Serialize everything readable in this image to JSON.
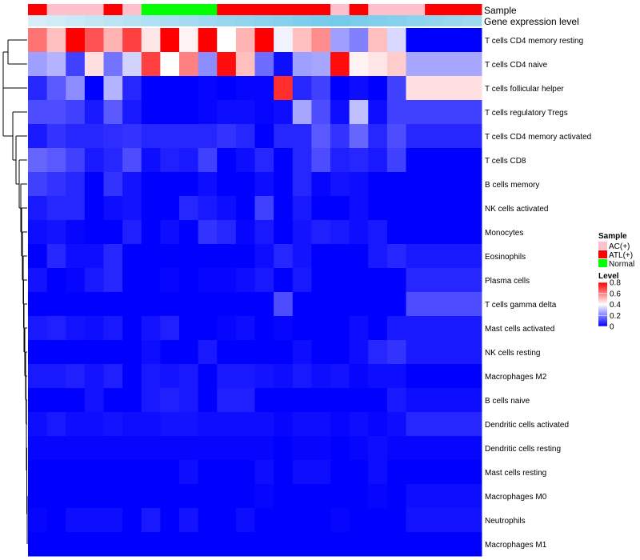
{
  "chart_data": {
    "type": "heatmap",
    "title": "",
    "annotation_tracks": [
      {
        "name": "Sample",
        "label": "Sample"
      },
      {
        "name": "Gene expression level",
        "label": "Gene expression level"
      }
    ],
    "sample_groups": [
      "ATL(+)",
      "AC(+)",
      "AC(+)",
      "AC(+)",
      "ATL(+)",
      "AC(+)",
      "Normal",
      "Normal",
      "Normal",
      "Normal",
      "ATL(+)",
      "ATL(+)",
      "ATL(+)",
      "ATL(+)",
      "ATL(+)",
      "ATL(+)",
      "AC(+)",
      "ATL(+)",
      "AC(+)",
      "AC(+)",
      "AC(+)",
      "ATL(+)",
      "ATL(+)",
      "ATL(+)"
    ],
    "expression_level": [
      0.02,
      0.08,
      0.14,
      0.2,
      0.26,
      0.32,
      0.38,
      0.44,
      0.5,
      0.56,
      0.62,
      0.68,
      0.74,
      0.8,
      0.86,
      0.92,
      0.96,
      0.9,
      0.84,
      0.78,
      0.72,
      0.66,
      0.6,
      0.54
    ],
    "rows": [
      "T cells CD4 memory resting",
      "T cells CD4 naive",
      "T cells follicular helper",
      "T cells regulatory  Tregs",
      "T cells CD4 memory activated",
      "T cells CD8",
      "B cells memory",
      "NK cells activated",
      "Monocytes",
      "Eosinophils",
      "Plasma cells",
      "T cells gamma delta",
      "Mast cells activated",
      "NK cells resting",
      "Macrophages M2",
      "B cells naive",
      "Dendritic cells activated",
      "Dendritic cells resting",
      "Mast cells resting",
      "Macrophages M0",
      "Neutrophils",
      "Macrophages M1"
    ],
    "values": [
      [
        0.62,
        0.5,
        0.8,
        0.67,
        0.52,
        0.7,
        0.44,
        0.8,
        0.42,
        0.8,
        0.4,
        0.52,
        0.8,
        0.38,
        0.5,
        0.58,
        0.25,
        0.2,
        0.5,
        0.34,
        0.0,
        0.0,
        0.0,
        0.0
      ],
      [
        0.25,
        0.28,
        0.1,
        0.45,
        0.18,
        0.33,
        0.7,
        0.4,
        0.6,
        0.22,
        0.78,
        0.5,
        0.17,
        0.02,
        0.25,
        0.26,
        0.78,
        0.42,
        0.44,
        0.48,
        0.26,
        0.26,
        0.26,
        0.26
      ],
      [
        0.06,
        0.14,
        0.22,
        0.0,
        0.28,
        0.06,
        0.0,
        0.0,
        0.0,
        0.01,
        0.0,
        0.01,
        0.01,
        0.73,
        0.06,
        0.1,
        0.0,
        0.02,
        0.0,
        0.1,
        0.45,
        0.45,
        0.45,
        0.45
      ],
      [
        0.12,
        0.12,
        0.1,
        0.04,
        0.14,
        0.04,
        0.0,
        0.0,
        0.0,
        0.01,
        0.02,
        0.02,
        0.01,
        0.02,
        0.26,
        0.12,
        0.02,
        0.3,
        0.02,
        0.1,
        0.1,
        0.1,
        0.1,
        0.1
      ],
      [
        0.04,
        0.08,
        0.06,
        0.06,
        0.07,
        0.08,
        0.06,
        0.06,
        0.06,
        0.06,
        0.08,
        0.06,
        0.0,
        0.06,
        0.06,
        0.14,
        0.08,
        0.16,
        0.06,
        0.12,
        0.06,
        0.06,
        0.06,
        0.06
      ],
      [
        0.16,
        0.14,
        0.1,
        0.04,
        0.06,
        0.12,
        0.02,
        0.05,
        0.04,
        0.1,
        0.0,
        0.02,
        0.06,
        0.0,
        0.06,
        0.12,
        0.05,
        0.06,
        0.04,
        0.1,
        0.0,
        0.0,
        0.0,
        0.0
      ],
      [
        0.1,
        0.08,
        0.06,
        0.0,
        0.08,
        0.03,
        0.0,
        0.0,
        0.0,
        0.02,
        0.0,
        0.0,
        0.02,
        0.0,
        0.06,
        0.01,
        0.03,
        0.02,
        0.0,
        0.0,
        0.0,
        0.0,
        0.0,
        0.0
      ],
      [
        0.04,
        0.06,
        0.06,
        0.0,
        0.02,
        0.03,
        0.0,
        0.0,
        0.06,
        0.04,
        0.02,
        0.0,
        0.1,
        0.0,
        0.04,
        0.0,
        0.0,
        0.02,
        0.0,
        0.0,
        0.0,
        0.0,
        0.0,
        0.0
      ],
      [
        0.02,
        0.03,
        0.01,
        0.0,
        0.0,
        0.05,
        0.0,
        0.02,
        0.0,
        0.08,
        0.06,
        0.01,
        0.04,
        0.0,
        0.03,
        0.05,
        0.04,
        0.02,
        0.04,
        0.0,
        0.0,
        0.0,
        0.0,
        0.0
      ],
      [
        0.0,
        0.06,
        0.02,
        0.02,
        0.06,
        0.0,
        0.0,
        0.0,
        0.0,
        0.0,
        0.0,
        0.0,
        0.02,
        0.06,
        0.03,
        0.0,
        0.0,
        0.0,
        0.04,
        0.06,
        0.04,
        0.04,
        0.04,
        0.04
      ],
      [
        0.03,
        0.0,
        0.01,
        0.04,
        0.06,
        0.0,
        0.0,
        0.01,
        0.0,
        0.01,
        0.01,
        0.02,
        0.04,
        0.0,
        0.04,
        0.0,
        0.0,
        0.0,
        0.0,
        0.0,
        0.06,
        0.06,
        0.06,
        0.06
      ],
      [
        0.0,
        0.0,
        0.0,
        0.0,
        0.0,
        0.0,
        0.0,
        0.0,
        0.0,
        0.0,
        0.0,
        0.0,
        0.0,
        0.12,
        0.0,
        0.0,
        0.0,
        0.0,
        0.0,
        0.0,
        0.12,
        0.12,
        0.12,
        0.12
      ],
      [
        0.04,
        0.05,
        0.03,
        0.02,
        0.04,
        0.0,
        0.03,
        0.05,
        0.0,
        0.0,
        0.01,
        0.02,
        0.0,
        0.01,
        0.0,
        0.0,
        0.0,
        0.02,
        0.0,
        0.04,
        0.04,
        0.04,
        0.04,
        0.04
      ],
      [
        0.0,
        0.0,
        0.0,
        0.0,
        0.0,
        0.0,
        0.02,
        0.0,
        0.0,
        0.04,
        0.0,
        0.0,
        0.0,
        0.0,
        0.02,
        0.0,
        0.0,
        0.02,
        0.06,
        0.08,
        0.04,
        0.04,
        0.04,
        0.04
      ],
      [
        0.04,
        0.04,
        0.05,
        0.03,
        0.05,
        0.0,
        0.04,
        0.03,
        0.04,
        0.0,
        0.04,
        0.04,
        0.03,
        0.02,
        0.04,
        0.02,
        0.03,
        0.01,
        0.02,
        0.02,
        0.0,
        0.0,
        0.0,
        0.0
      ],
      [
        0.0,
        0.0,
        0.0,
        0.03,
        0.0,
        0.0,
        0.04,
        0.05,
        0.04,
        0.0,
        0.05,
        0.05,
        0.0,
        0.0,
        0.0,
        0.0,
        0.0,
        0.0,
        0.0,
        0.04,
        0.02,
        0.02,
        0.02,
        0.02
      ],
      [
        0.02,
        0.04,
        0.02,
        0.02,
        0.03,
        0.02,
        0.02,
        0.03,
        0.03,
        0.02,
        0.02,
        0.02,
        0.02,
        0.01,
        0.02,
        0.02,
        0.01,
        0.02,
        0.01,
        0.02,
        0.06,
        0.06,
        0.06,
        0.06
      ],
      [
        0.01,
        0.01,
        0.01,
        0.01,
        0.01,
        0.01,
        0.01,
        0.01,
        0.01,
        0.01,
        0.01,
        0.01,
        0.01,
        0.0,
        0.01,
        0.01,
        0.0,
        0.01,
        0.02,
        0.01,
        0.01,
        0.01,
        0.01,
        0.01
      ],
      [
        0.0,
        0.0,
        0.0,
        0.0,
        0.0,
        0.0,
        0.0,
        0.0,
        0.02,
        0.0,
        0.0,
        0.0,
        0.02,
        0.0,
        0.02,
        0.02,
        0.0,
        0.0,
        0.02,
        0.0,
        0.0,
        0.0,
        0.0,
        0.0
      ],
      [
        0.0,
        0.0,
        0.0,
        0.0,
        0.0,
        0.0,
        0.0,
        0.0,
        0.0,
        0.0,
        0.0,
        0.0,
        0.01,
        0.0,
        0.0,
        0.0,
        0.0,
        0.0,
        0.01,
        0.0,
        0.02,
        0.02,
        0.02,
        0.02
      ],
      [
        0.01,
        0.0,
        0.02,
        0.02,
        0.02,
        0.0,
        0.04,
        0.0,
        0.03,
        0.0,
        0.0,
        0.02,
        0.0,
        0.0,
        0.0,
        0.0,
        0.01,
        0.0,
        0.0,
        0.0,
        0.03,
        0.03,
        0.03,
        0.03
      ],
      [
        0.0,
        0.0,
        0.0,
        0.0,
        0.0,
        0.0,
        0.0,
        0.0,
        0.0,
        0.0,
        0.0,
        0.0,
        0.0,
        0.0,
        0.0,
        0.0,
        0.0,
        0.0,
        0.0,
        0.0,
        0.0,
        0.0,
        0.0,
        0.0
      ]
    ],
    "colorscale": {
      "min": 0,
      "mid": 0.4,
      "max": 0.8,
      "low": "#0000FF",
      "middle": "#FFFFFF",
      "high": "#FF0000"
    },
    "legends": {
      "sample": {
        "title": "Sample",
        "items": [
          {
            "label": "AC(+)",
            "color": "#FFC0CB"
          },
          {
            "label": "ATL(+)",
            "color": "#FF0000"
          },
          {
            "label": "Normal",
            "color": "#00FF00"
          }
        ]
      },
      "level": {
        "title": "Level",
        "ticks": [
          "0.8",
          "0.6",
          "0.4",
          "0.2",
          "0"
        ],
        "tick_values": [
          0.8,
          0.6,
          0.4,
          0.2,
          0
        ]
      }
    }
  }
}
